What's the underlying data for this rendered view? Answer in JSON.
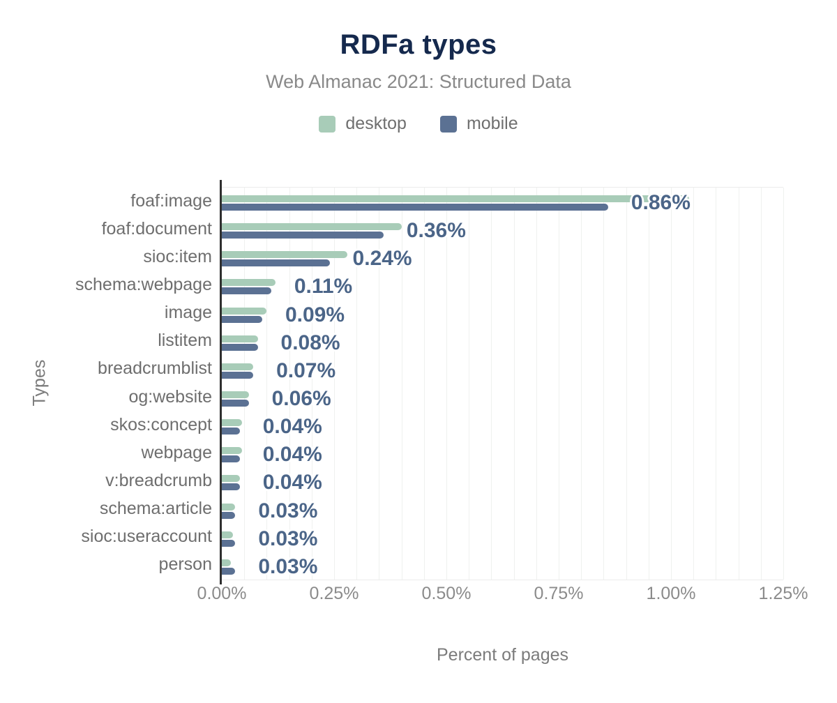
{
  "colors": {
    "background": "#ffffff",
    "title": "#15294d",
    "subtitle": "#898989",
    "category_label": "#6e6e6e",
    "value_label": "#4b6588",
    "tick_label": "#8b8b8b",
    "axis_title": "#7b7b7b",
    "legend_label": "#6f6f6f",
    "axis_line": "#2f2f2f",
    "gridline": "#eff1ef",
    "desktop": "#a8ccb8",
    "mobile": "#5b7193"
  },
  "legend": {
    "items": [
      {
        "label": "desktop",
        "color": "#a8ccb8"
      },
      {
        "label": "mobile",
        "color": "#5b7193"
      }
    ]
  },
  "chart_data": {
    "type": "bar",
    "orientation": "horizontal",
    "title": "RDFa types",
    "subtitle": "Web Almanac 2021: Structured Data",
    "xlabel": "Percent of pages",
    "ylabel": "Types",
    "xlim": [
      0,
      1.25
    ],
    "x_tick_step": 0.25,
    "minor_grid_step": 0.05,
    "grid": true,
    "legend_position": "top",
    "x_ticks": [
      {
        "label": "0.00%",
        "value": 0
      },
      {
        "label": "0.25%",
        "value": 0.25
      },
      {
        "label": "0.50%",
        "value": 0.5
      },
      {
        "label": "0.75%",
        "value": 0.75
      },
      {
        "label": "1.00%",
        "value": 1.0
      },
      {
        "label": "1.25%",
        "value": 1.25
      }
    ],
    "categories": [
      "foaf:image",
      "foaf:document",
      "sioc:item",
      "schema:webpage",
      "image",
      "listitem",
      "breadcrumblist",
      "og:website",
      "skos:concept",
      "webpage",
      "v:breadcrumb",
      "schema:article",
      "sioc:useraccount",
      "person"
    ],
    "series": [
      {
        "name": "desktop",
        "color": "#a8ccb8",
        "values": [
          1.04,
          0.4,
          0.28,
          0.12,
          0.1,
          0.08,
          0.07,
          0.06,
          0.045,
          0.045,
          0.04,
          0.03,
          0.025,
          0.02
        ]
      },
      {
        "name": "mobile",
        "color": "#5b7193",
        "values": [
          0.86,
          0.36,
          0.24,
          0.11,
          0.09,
          0.08,
          0.07,
          0.06,
          0.04,
          0.04,
          0.04,
          0.03,
          0.03,
          0.03
        ]
      }
    ],
    "value_labels": [
      "0.86%",
      "0.36%",
      "0.24%",
      "0.11%",
      "0.09%",
      "0.08%",
      "0.07%",
      "0.06%",
      "0.04%",
      "0.04%",
      "0.04%",
      "0.03%",
      "0.03%",
      "0.03%"
    ],
    "value_labels_series": "mobile"
  }
}
